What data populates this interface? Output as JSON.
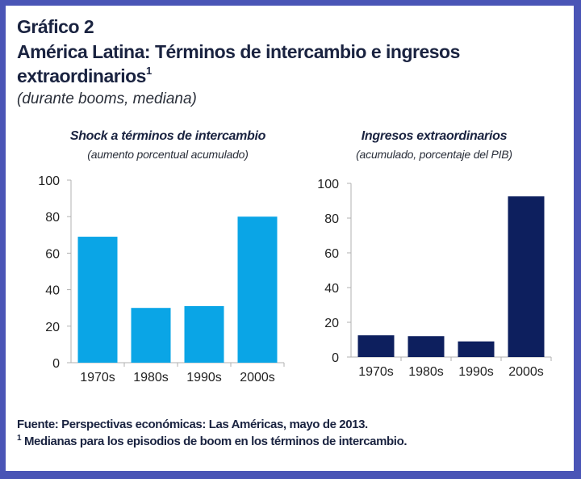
{
  "header": {
    "figure_label": "Gráfico 2",
    "title_line1": "América Latina: Términos de intercambio e ingresos",
    "title_line2": "extraordinarios",
    "title_sup": "1",
    "subtitle": "(durante booms, mediana)"
  },
  "footer": {
    "source": "Fuente: Perspectivas económicas: Las Américas, mayo de 2013.",
    "note_sup": "1",
    "note": "Medianas para los episodios de boom en los términos de intercambio."
  },
  "colors": {
    "frame": "#4a55b6",
    "left_bars": "#0aa5e6",
    "right_bars": "#0d1f5e",
    "axis": "#b0b0b0"
  },
  "chart_data": [
    {
      "type": "bar",
      "title": "Shock a términos de intercambio",
      "subtitle": "(aumento porcentual acumulado)",
      "categories": [
        "1970s",
        "1980s",
        "1990s",
        "2000s"
      ],
      "values": [
        69,
        30,
        31,
        80
      ],
      "xlabel": "",
      "ylabel": "",
      "ylim": [
        0,
        100
      ],
      "yticks": [
        0,
        20,
        40,
        60,
        80,
        100
      ],
      "grid": false,
      "color": "#0aa5e6"
    },
    {
      "type": "bar",
      "title": "Ingresos extraordinarios",
      "subtitle": "(acumulado, porcentaje del PIB)",
      "categories": [
        "1970s",
        "1980s",
        "1990s",
        "2000s"
      ],
      "values": [
        12.5,
        12,
        9,
        92.5
      ],
      "xlabel": "",
      "ylabel": "",
      "ylim": [
        0,
        100
      ],
      "yticks": [
        0,
        20,
        40,
        60,
        80,
        100
      ],
      "grid": false,
      "color": "#0d1f5e"
    }
  ]
}
